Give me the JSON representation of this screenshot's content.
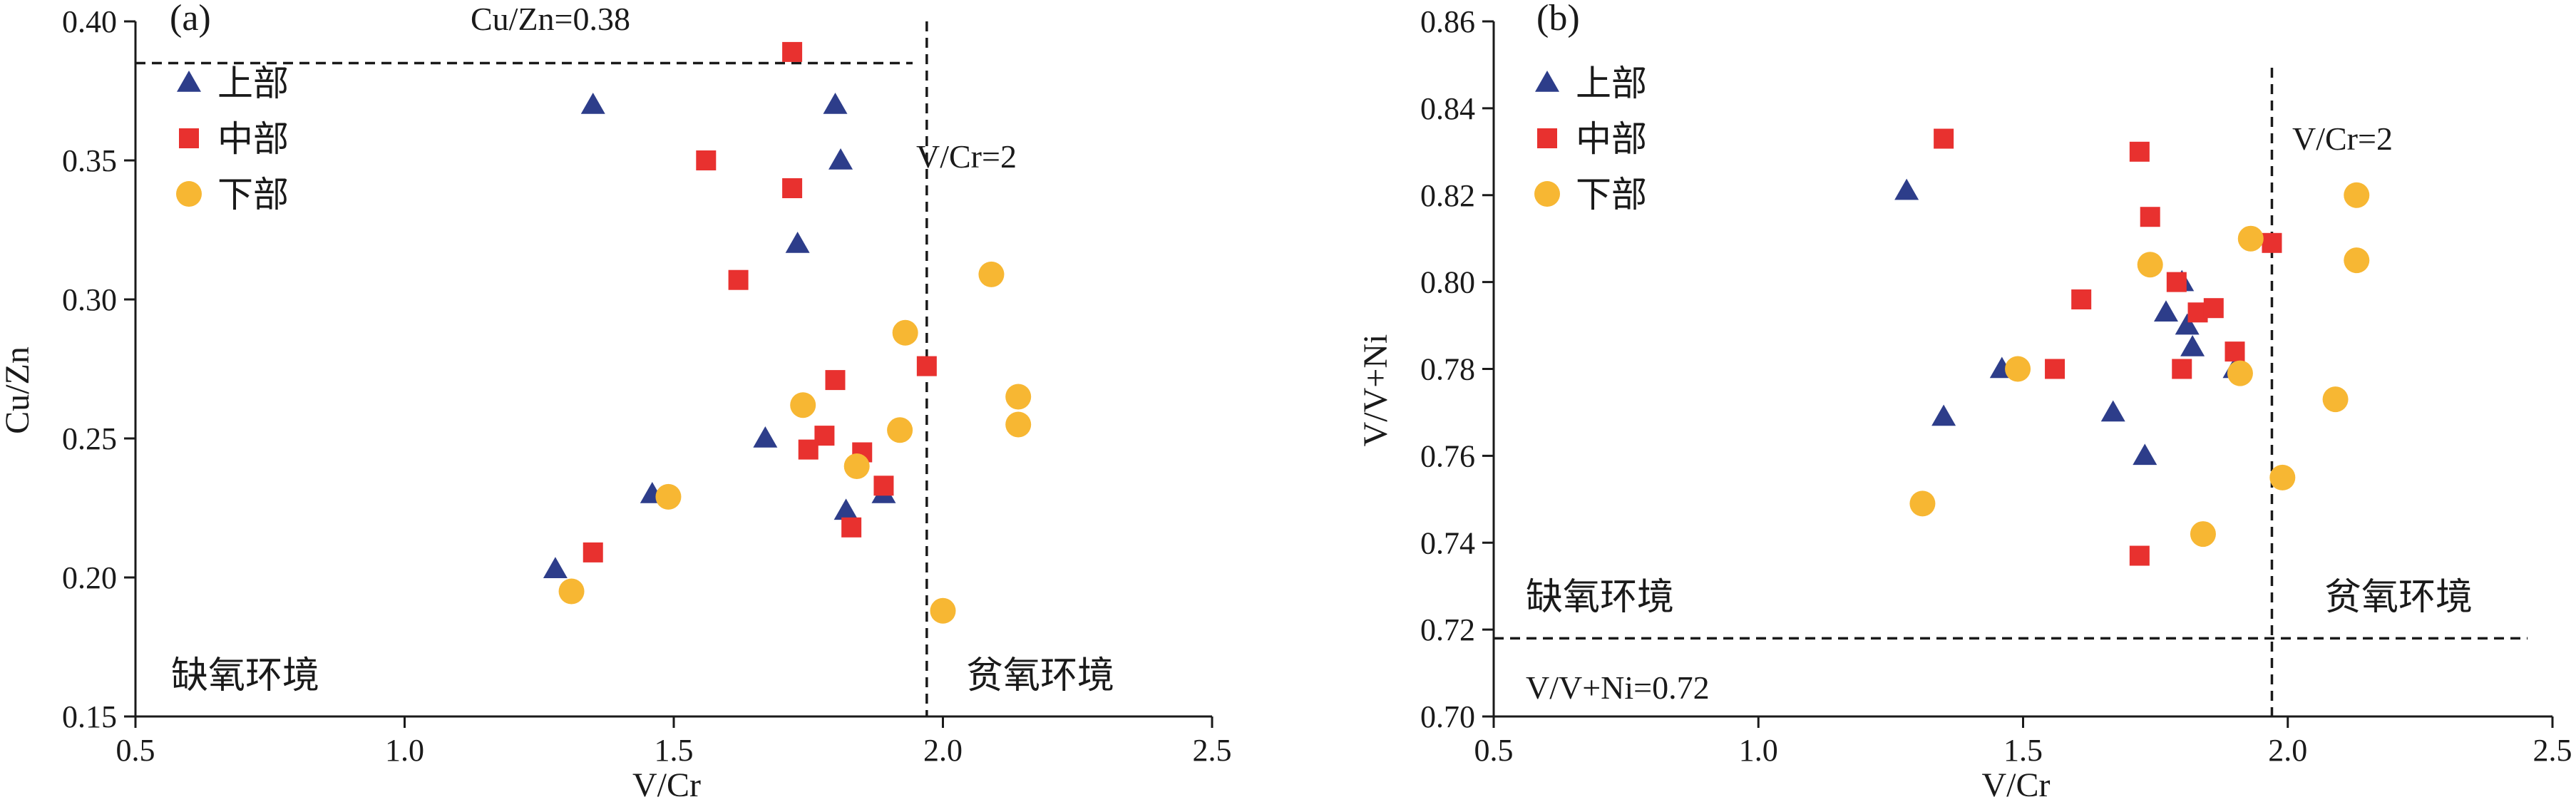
{
  "colors": {
    "upper": "#2d3d8a",
    "middle": "#e8312f",
    "lower": "#f7b733",
    "axis": "#1a1a1a"
  },
  "chart_data": [
    {
      "type": "scatter",
      "panel_label": "(a)",
      "xlabel": "V/Cr",
      "ylabel": "Cu/Zn",
      "xlim": [
        0.5,
        2.5
      ],
      "ylim": [
        0.15,
        0.4
      ],
      "xticks": [
        "0.5",
        "1.0",
        "1.5",
        "2.0",
        "2.5"
      ],
      "yticks": [
        "0.15",
        "0.20",
        "0.25",
        "0.30",
        "0.35",
        "0.40"
      ],
      "legend_position": "top-left",
      "threshold_labels": {
        "h": "Cu/Zn=0.38",
        "v": "V/Cr=2"
      },
      "zone_labels": {
        "left": "缺氧环境",
        "right": "贫氧环境"
      },
      "series": [
        {
          "name": "上部",
          "marker": "triangle",
          "points": [
            [
              1.35,
              0.37
            ],
            [
              1.8,
              0.37
            ],
            [
              1.81,
              0.35
            ],
            [
              1.73,
              0.32
            ],
            [
              1.67,
              0.25
            ],
            [
              1.46,
              0.23
            ],
            [
              1.28,
              0.203
            ],
            [
              1.82,
              0.224
            ],
            [
              1.89,
              0.23
            ]
          ]
        },
        {
          "name": "中部",
          "marker": "square",
          "points": [
            [
              1.72,
              0.389
            ],
            [
              1.56,
              0.35
            ],
            [
              1.72,
              0.34
            ],
            [
              1.62,
              0.307
            ],
            [
              1.97,
              0.276
            ],
            [
              1.8,
              0.271
            ],
            [
              1.78,
              0.251
            ],
            [
              1.75,
              0.246
            ],
            [
              1.85,
              0.245
            ],
            [
              1.89,
              0.233
            ],
            [
              1.83,
              0.218
            ],
            [
              1.35,
              0.209
            ]
          ]
        },
        {
          "name": "下部",
          "marker": "circle",
          "points": [
            [
              2.09,
              0.309
            ],
            [
              1.93,
              0.288
            ],
            [
              2.14,
              0.265
            ],
            [
              2.14,
              0.255
            ],
            [
              1.74,
              0.262
            ],
            [
              1.92,
              0.253
            ],
            [
              1.84,
              0.24
            ],
            [
              1.49,
              0.229
            ],
            [
              1.31,
              0.195
            ],
            [
              2.0,
              0.188
            ]
          ]
        }
      ]
    },
    {
      "type": "scatter",
      "panel_label": "(b)",
      "xlabel": "V/Cr",
      "ylabel": "V/V+Ni",
      "xlim": [
        0.5,
        2.5
      ],
      "ylim": [
        0.7,
        0.86
      ],
      "xticks": [
        "0.5",
        "1.0",
        "1.5",
        "2.0",
        "2.5"
      ],
      "yticks": [
        "0.70",
        "0.72",
        "0.74",
        "0.76",
        "0.78",
        "0.80",
        "0.82",
        "0.84",
        "0.86"
      ],
      "legend_position": "top-left",
      "threshold_labels": {
        "h": "V/V+Ni=0.72",
        "v": "V/Cr=2"
      },
      "zone_labels": {
        "left": "缺氧环境",
        "right": "贫氧环境"
      },
      "series": [
        {
          "name": "上部",
          "marker": "triangle",
          "points": [
            [
              1.28,
              0.821
            ],
            [
              1.35,
              0.769
            ],
            [
              1.46,
              0.78
            ],
            [
              1.67,
              0.77
            ],
            [
              1.73,
              0.76
            ],
            [
              1.77,
              0.793
            ],
            [
              1.8,
              0.8
            ],
            [
              1.81,
              0.79
            ],
            [
              1.82,
              0.785
            ],
            [
              1.9,
              0.78
            ]
          ]
        },
        {
          "name": "中部",
          "marker": "square",
          "points": [
            [
              1.35,
              0.833
            ],
            [
              1.72,
              0.83
            ],
            [
              1.74,
              0.815
            ],
            [
              1.97,
              0.809
            ],
            [
              1.61,
              0.796
            ],
            [
              1.79,
              0.8
            ],
            [
              1.83,
              0.793
            ],
            [
              1.86,
              0.794
            ],
            [
              1.56,
              0.78
            ],
            [
              1.8,
              0.78
            ],
            [
              1.9,
              0.784
            ],
            [
              1.72,
              0.737
            ]
          ]
        },
        {
          "name": "下部",
          "marker": "circle",
          "points": [
            [
              2.13,
              0.82
            ],
            [
              1.93,
              0.81
            ],
            [
              2.13,
              0.805
            ],
            [
              1.74,
              0.804
            ],
            [
              1.49,
              0.78
            ],
            [
              1.91,
              0.779
            ],
            [
              2.09,
              0.773
            ],
            [
              1.31,
              0.749
            ],
            [
              1.84,
              0.742
            ],
            [
              1.99,
              0.755
            ]
          ]
        }
      ]
    }
  ]
}
